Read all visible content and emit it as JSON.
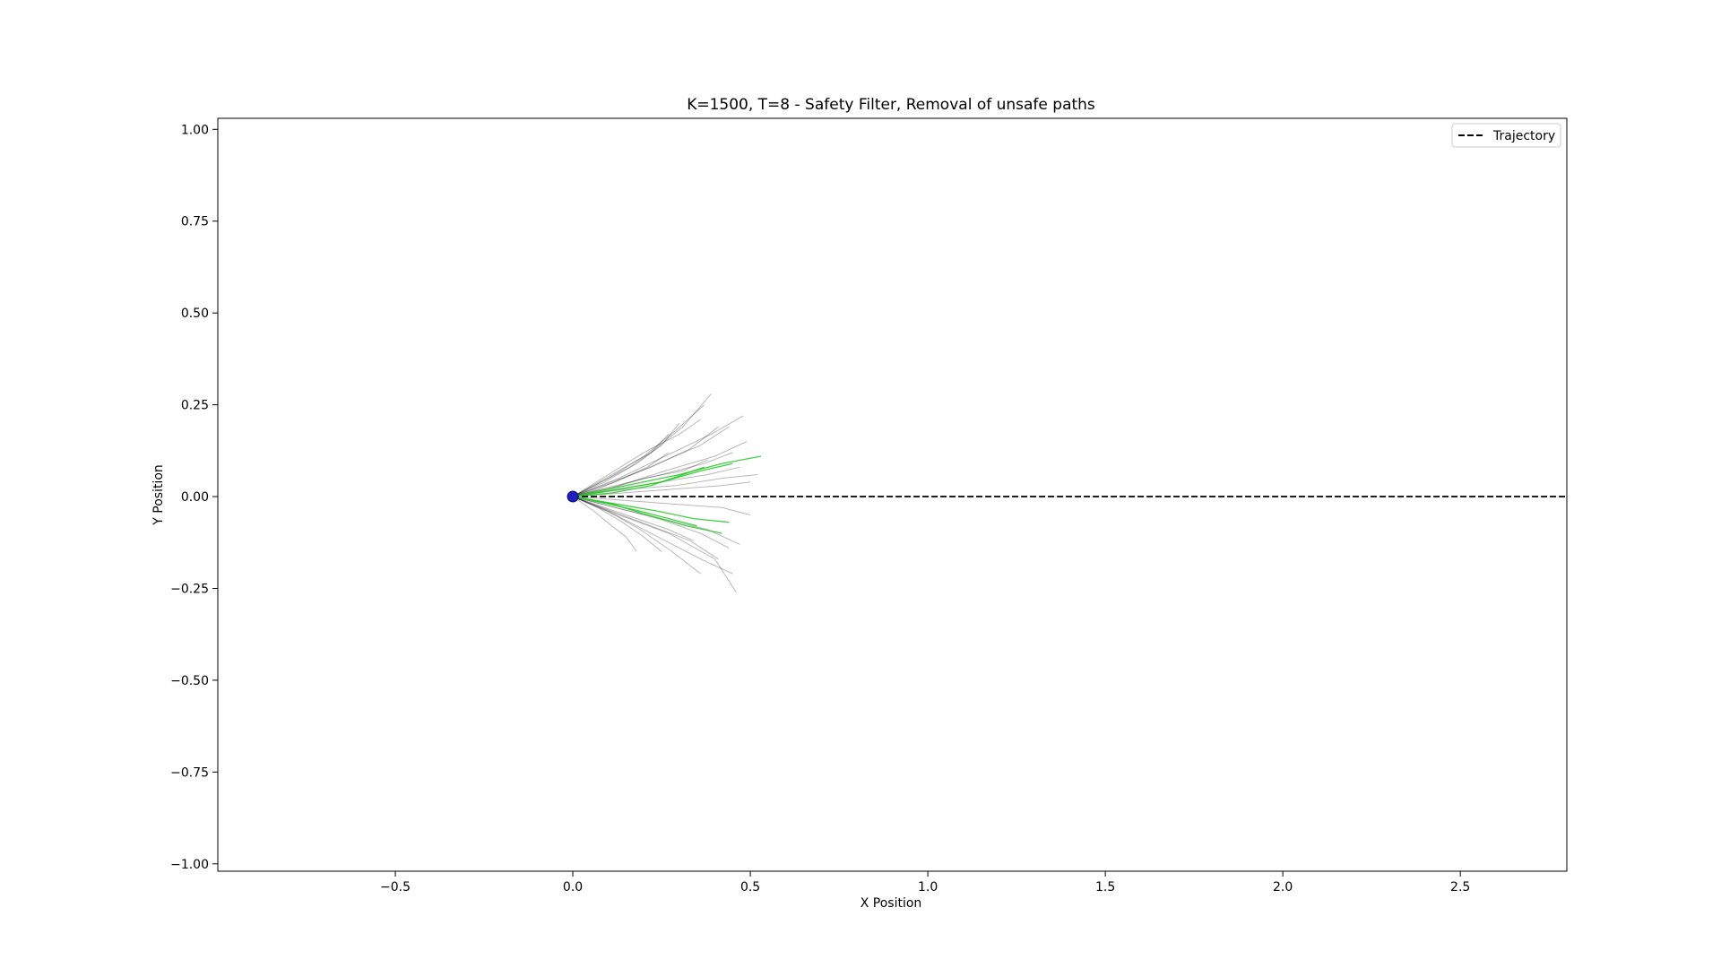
{
  "chart_data": {
    "type": "line",
    "title": "K=1500, T=8 - Safety Filter, Removal of unsafe paths",
    "xlabel": "X Position",
    "ylabel": "Y Position",
    "xlim": [
      -1.0,
      2.8
    ],
    "ylim": [
      -1.02,
      1.03
    ],
    "xticks": [
      -0.5,
      0.0,
      0.5,
      1.0,
      1.5,
      2.0,
      2.5
    ],
    "xtick_labels": [
      "−0.5",
      "0.0",
      "0.5",
      "1.0",
      "1.5",
      "2.0",
      "2.5"
    ],
    "yticks": [
      1.0,
      0.75,
      0.5,
      0.25,
      0.0,
      -0.25,
      -0.5,
      -0.75,
      -1.0
    ],
    "ytick_labels": [
      "1.00",
      "0.75",
      "0.50",
      "0.25",
      "0.00",
      "−0.25",
      "−0.50",
      "−0.75",
      "−1.00"
    ],
    "grid": false,
    "legend": {
      "position": "top-right",
      "entries": [
        {
          "label": "Trajectory",
          "style": "dashed",
          "color": "#000000"
        }
      ]
    },
    "series": [
      {
        "name": "Trajectory",
        "style": "dashed",
        "color": "#000000",
        "x": [
          0.0,
          2.8
        ],
        "y": [
          0.0,
          0.0
        ]
      }
    ],
    "start_point": {
      "x": 0.0,
      "y": 0.0,
      "color": "#1f1fbf"
    },
    "sampled_paths": [
      {
        "x": [
          0.0,
          0.13,
          0.26,
          0.39,
          0.48
        ],
        "y": [
          0.0,
          0.05,
          0.11,
          0.17,
          0.22
        ],
        "color": "#000000"
      },
      {
        "x": [
          0.0,
          0.12,
          0.24,
          0.36,
          0.44
        ],
        "y": [
          0.0,
          0.04,
          0.09,
          0.14,
          0.19
        ],
        "color": "#000000"
      },
      {
        "x": [
          0.0,
          0.11,
          0.22,
          0.31,
          0.39
        ],
        "y": [
          0.0,
          0.06,
          0.12,
          0.19,
          0.28
        ],
        "color": "#000000"
      },
      {
        "x": [
          0.0,
          0.1,
          0.2,
          0.29,
          0.37
        ],
        "y": [
          0.0,
          0.05,
          0.11,
          0.18,
          0.25
        ],
        "color": "#000000"
      },
      {
        "x": [
          0.0,
          0.11,
          0.22,
          0.33,
          0.41
        ],
        "y": [
          0.0,
          0.04,
          0.08,
          0.13,
          0.19
        ],
        "color": "#000000"
      },
      {
        "x": [
          0.0,
          0.13,
          0.26,
          0.4,
          0.49
        ],
        "y": [
          0.0,
          0.03,
          0.07,
          0.11,
          0.15
        ],
        "color": "#000000"
      },
      {
        "x": [
          0.0,
          0.12,
          0.25,
          0.37,
          0.45
        ],
        "y": [
          0.0,
          0.03,
          0.06,
          0.09,
          0.12
        ],
        "color": "#000000"
      },
      {
        "x": [
          0.0,
          0.09,
          0.18,
          0.25,
          0.3
        ],
        "y": [
          0.0,
          0.04,
          0.09,
          0.14,
          0.2
        ],
        "color": "#000000"
      },
      {
        "x": [
          0.0,
          0.08,
          0.16,
          0.22,
          0.27
        ],
        "y": [
          0.0,
          0.04,
          0.08,
          0.12,
          0.17
        ],
        "color": "#000000"
      },
      {
        "x": [
          0.0,
          0.12,
          0.25,
          0.38,
          0.47
        ],
        "y": [
          0.0,
          0.02,
          0.04,
          0.06,
          0.08
        ],
        "color": "#000000"
      },
      {
        "x": [
          0.0,
          0.1,
          0.2,
          0.31,
          0.38
        ],
        "y": [
          0.0,
          0.02,
          0.05,
          0.07,
          0.1
        ],
        "color": "#000000"
      },
      {
        "x": [
          0.0,
          0.14,
          0.28,
          0.42,
          0.5
        ],
        "y": [
          0.0,
          0.01,
          0.02,
          0.03,
          0.04
        ],
        "color": "#000000"
      },
      {
        "x": [
          0.0,
          0.12,
          0.24,
          0.36,
          0.44
        ],
        "y": [
          0.0,
          -0.03,
          -0.06,
          -0.1,
          -0.14
        ],
        "color": "#000000"
      },
      {
        "x": [
          0.0,
          0.11,
          0.22,
          0.33,
          0.41
        ],
        "y": [
          0.0,
          -0.04,
          -0.08,
          -0.12,
          -0.17
        ],
        "color": "#000000"
      },
      {
        "x": [
          0.0,
          0.12,
          0.25,
          0.38,
          0.47
        ],
        "y": [
          0.0,
          -0.03,
          -0.06,
          -0.09,
          -0.13
        ],
        "color": "#000000"
      },
      {
        "x": [
          0.0,
          0.09,
          0.18,
          0.27,
          0.34
        ],
        "y": [
          0.0,
          -0.03,
          -0.06,
          -0.09,
          -0.12
        ],
        "color": "#000000"
      },
      {
        "x": [
          0.0,
          0.1,
          0.19,
          0.28,
          0.36
        ],
        "y": [
          0.0,
          -0.04,
          -0.09,
          -0.15,
          -0.21
        ],
        "color": "#000000"
      },
      {
        "x": [
          0.0,
          0.13,
          0.27,
          0.4,
          0.46
        ],
        "y": [
          0.0,
          -0.05,
          -0.1,
          -0.17,
          -0.26
        ],
        "color": "#000000"
      },
      {
        "x": [
          0.0,
          0.06,
          0.11,
          0.15,
          0.18
        ],
        "y": [
          0.0,
          -0.04,
          -0.08,
          -0.11,
          -0.15
        ],
        "color": "#000000"
      },
      {
        "x": [
          0.0,
          0.07,
          0.14,
          0.21,
          0.27
        ],
        "y": [
          0.0,
          0.02,
          0.05,
          0.08,
          0.12
        ],
        "color": "#000000"
      },
      {
        "x": [
          0.0,
          0.1,
          0.2,
          0.3,
          0.36
        ],
        "y": [
          0.0,
          0.06,
          0.12,
          0.17,
          0.21
        ],
        "color": "#000000"
      },
      {
        "x": [
          0.0,
          0.15,
          0.29,
          0.42,
          0.52
        ],
        "y": [
          0.0,
          0.02,
          0.03,
          0.05,
          0.06
        ],
        "color": "#000000"
      },
      {
        "x": [
          0.0,
          0.14,
          0.28,
          0.42,
          0.5
        ],
        "y": [
          0.0,
          -0.01,
          -0.02,
          -0.03,
          -0.05
        ],
        "color": "#000000"
      },
      {
        "x": [
          0.0,
          0.12,
          0.24,
          0.36,
          0.45
        ],
        "y": [
          0.0,
          -0.05,
          -0.11,
          -0.17,
          -0.21
        ],
        "color": "#000000"
      },
      {
        "x": [
          0.0,
          0.07,
          0.14,
          0.2,
          0.25
        ],
        "y": [
          0.0,
          -0.03,
          -0.07,
          -0.11,
          -0.15
        ],
        "color": "#000000"
      },
      {
        "x": [
          0.0,
          0.15,
          0.3,
          0.42,
          0.53
        ],
        "y": [
          0.0,
          0.03,
          0.06,
          0.09,
          0.11
        ],
        "color": "#22c822"
      },
      {
        "x": [
          0.0,
          0.13,
          0.25,
          0.36,
          0.45
        ],
        "y": [
          0.0,
          0.02,
          0.04,
          0.07,
          0.09
        ],
        "color": "#22c822"
      },
      {
        "x": [
          0.0,
          0.11,
          0.22,
          0.31,
          0.37
        ],
        "y": [
          0.0,
          0.01,
          0.03,
          0.06,
          0.08
        ],
        "color": "#22c822"
      },
      {
        "x": [
          0.0,
          0.12,
          0.24,
          0.34,
          0.44
        ],
        "y": [
          0.0,
          -0.02,
          -0.04,
          -0.06,
          -0.07
        ],
        "color": "#22c822"
      },
      {
        "x": [
          0.0,
          0.11,
          0.21,
          0.32,
          0.42
        ],
        "y": [
          0.0,
          -0.02,
          -0.05,
          -0.08,
          -0.1
        ],
        "color": "#22c822"
      },
      {
        "x": [
          0.0,
          0.1,
          0.19,
          0.27,
          0.35
        ],
        "y": [
          0.0,
          -0.02,
          -0.04,
          -0.06,
          -0.08
        ],
        "color": "#22c822"
      }
    ]
  }
}
